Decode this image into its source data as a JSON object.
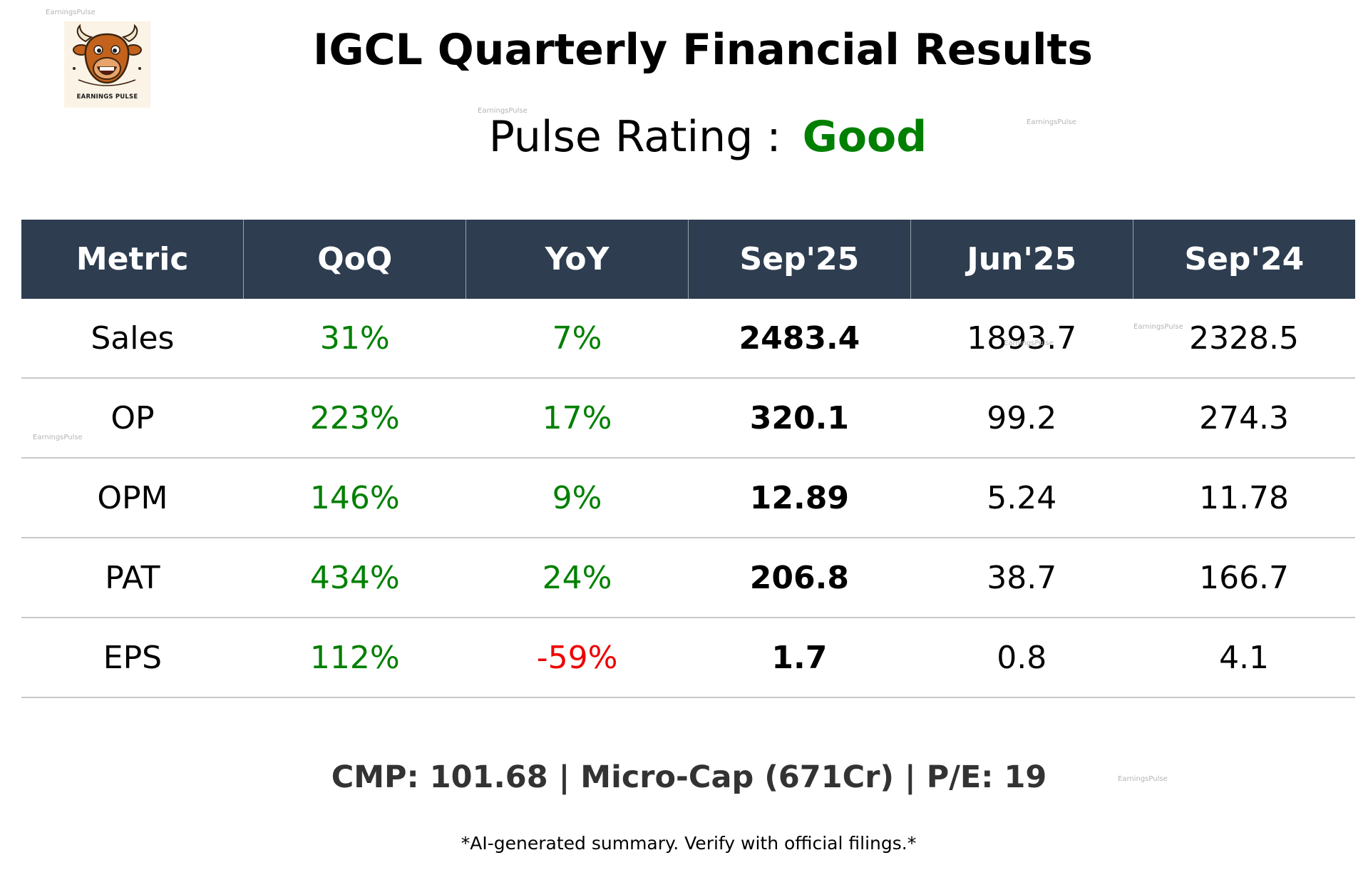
{
  "header": {
    "title": "IGCL Quarterly Financial Results",
    "rating_label": "Pulse Rating :",
    "rating_value": "Good",
    "rating_color": "#008000"
  },
  "logo": {
    "text": "EARNINGS PULSE",
    "icon": "bull-mascot-icon"
  },
  "watermark": "EarningsPulse",
  "table": {
    "columns": [
      "Metric",
      "QoQ",
      "YoY",
      "Sep'25",
      "Jun'25",
      "Sep'24"
    ],
    "rows": [
      {
        "metric": "Sales",
        "qoq": "31%",
        "yoy": "7%",
        "sep25": "2483.4",
        "jun25": "1893.7",
        "sep24": "2328.5"
      },
      {
        "metric": "OP",
        "qoq": "223%",
        "yoy": "17%",
        "sep25": "320.1",
        "jun25": "99.2",
        "sep24": "274.3"
      },
      {
        "metric": "OPM",
        "qoq": "146%",
        "yoy": "9%",
        "sep25": "12.89",
        "jun25": "5.24",
        "sep24": "11.78"
      },
      {
        "metric": "PAT",
        "qoq": "434%",
        "yoy": "24%",
        "sep25": "206.8",
        "jun25": "38.7",
        "sep24": "166.7"
      },
      {
        "metric": "EPS",
        "qoq": "112%",
        "yoy": "-59%",
        "sep25": "1.7",
        "jun25": "0.8",
        "sep24": "4.1"
      }
    ],
    "colors": {
      "header_bg": "#2e3d50",
      "positive": "#008000",
      "negative": "#ee0000"
    }
  },
  "footer": {
    "summary": "CMP: 101.68 | Micro-Cap (671Cr) | P/E: 19",
    "disclaimer": "*AI-generated summary. Verify with official filings.*"
  }
}
